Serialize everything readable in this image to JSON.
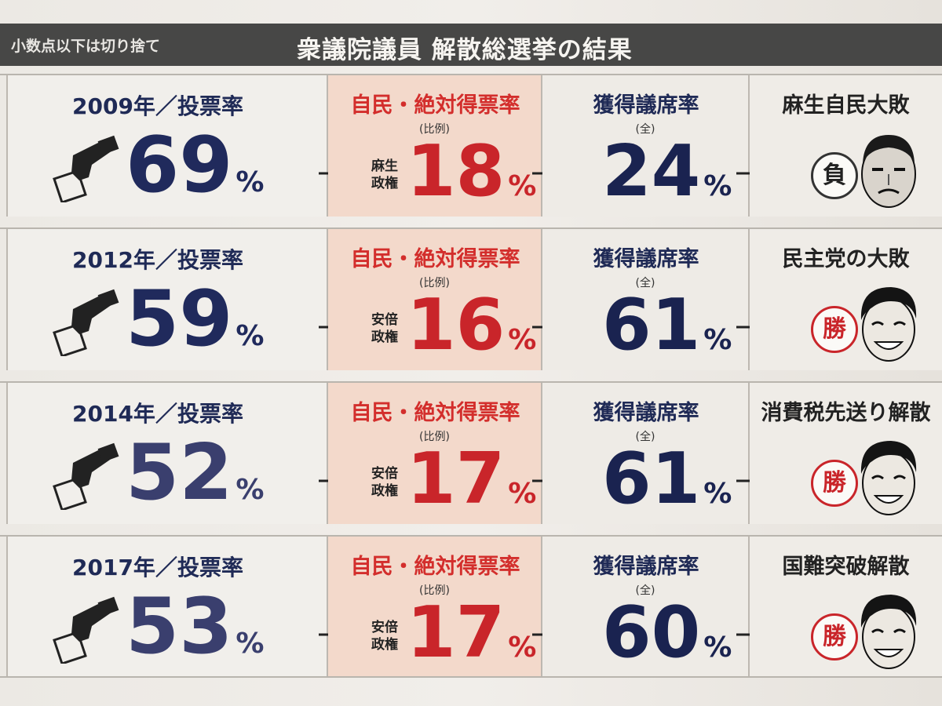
{
  "header": {
    "note": "小数点以下は切り捨て",
    "title": "衆議院議員 解散総選挙の結果"
  },
  "labels": {
    "turnout_suffix": "／投票率",
    "ldp_heading": "自民・絶対得票率",
    "ldp_sub": "(比例)",
    "seat_heading": "獲得議席率",
    "seat_sub": "(全)",
    "percent": "%"
  },
  "rows": [
    {
      "year": "2009年",
      "turnout": "69",
      "gov_line1": "麻生",
      "gov_line2": "政権",
      "ldp": "18",
      "seat": "24",
      "result": "麻生自民大敗",
      "stamp": "負"
    },
    {
      "year": "2012年",
      "turnout": "59",
      "gov_line1": "安倍",
      "gov_line2": "政権",
      "ldp": "16",
      "seat": "61",
      "result": "民主党の大敗",
      "stamp": "勝"
    },
    {
      "year": "2014年",
      "turnout": "52",
      "gov_line1": "安倍",
      "gov_line2": "政権",
      "ldp": "17",
      "seat": "61",
      "result": "消費税先送り解散",
      "stamp": "勝"
    },
    {
      "year": "2017年",
      "turnout": "53",
      "gov_line1": "安倍",
      "gov_line2": "政権",
      "ldp": "17",
      "seat": "60",
      "result": "国難突破解散",
      "stamp": "勝"
    }
  ],
  "colors": {
    "navy": "#1f2a56",
    "red": "#c9252a",
    "header_bg": "#474746",
    "ldp_column_bg": "#f3d9cb"
  }
}
